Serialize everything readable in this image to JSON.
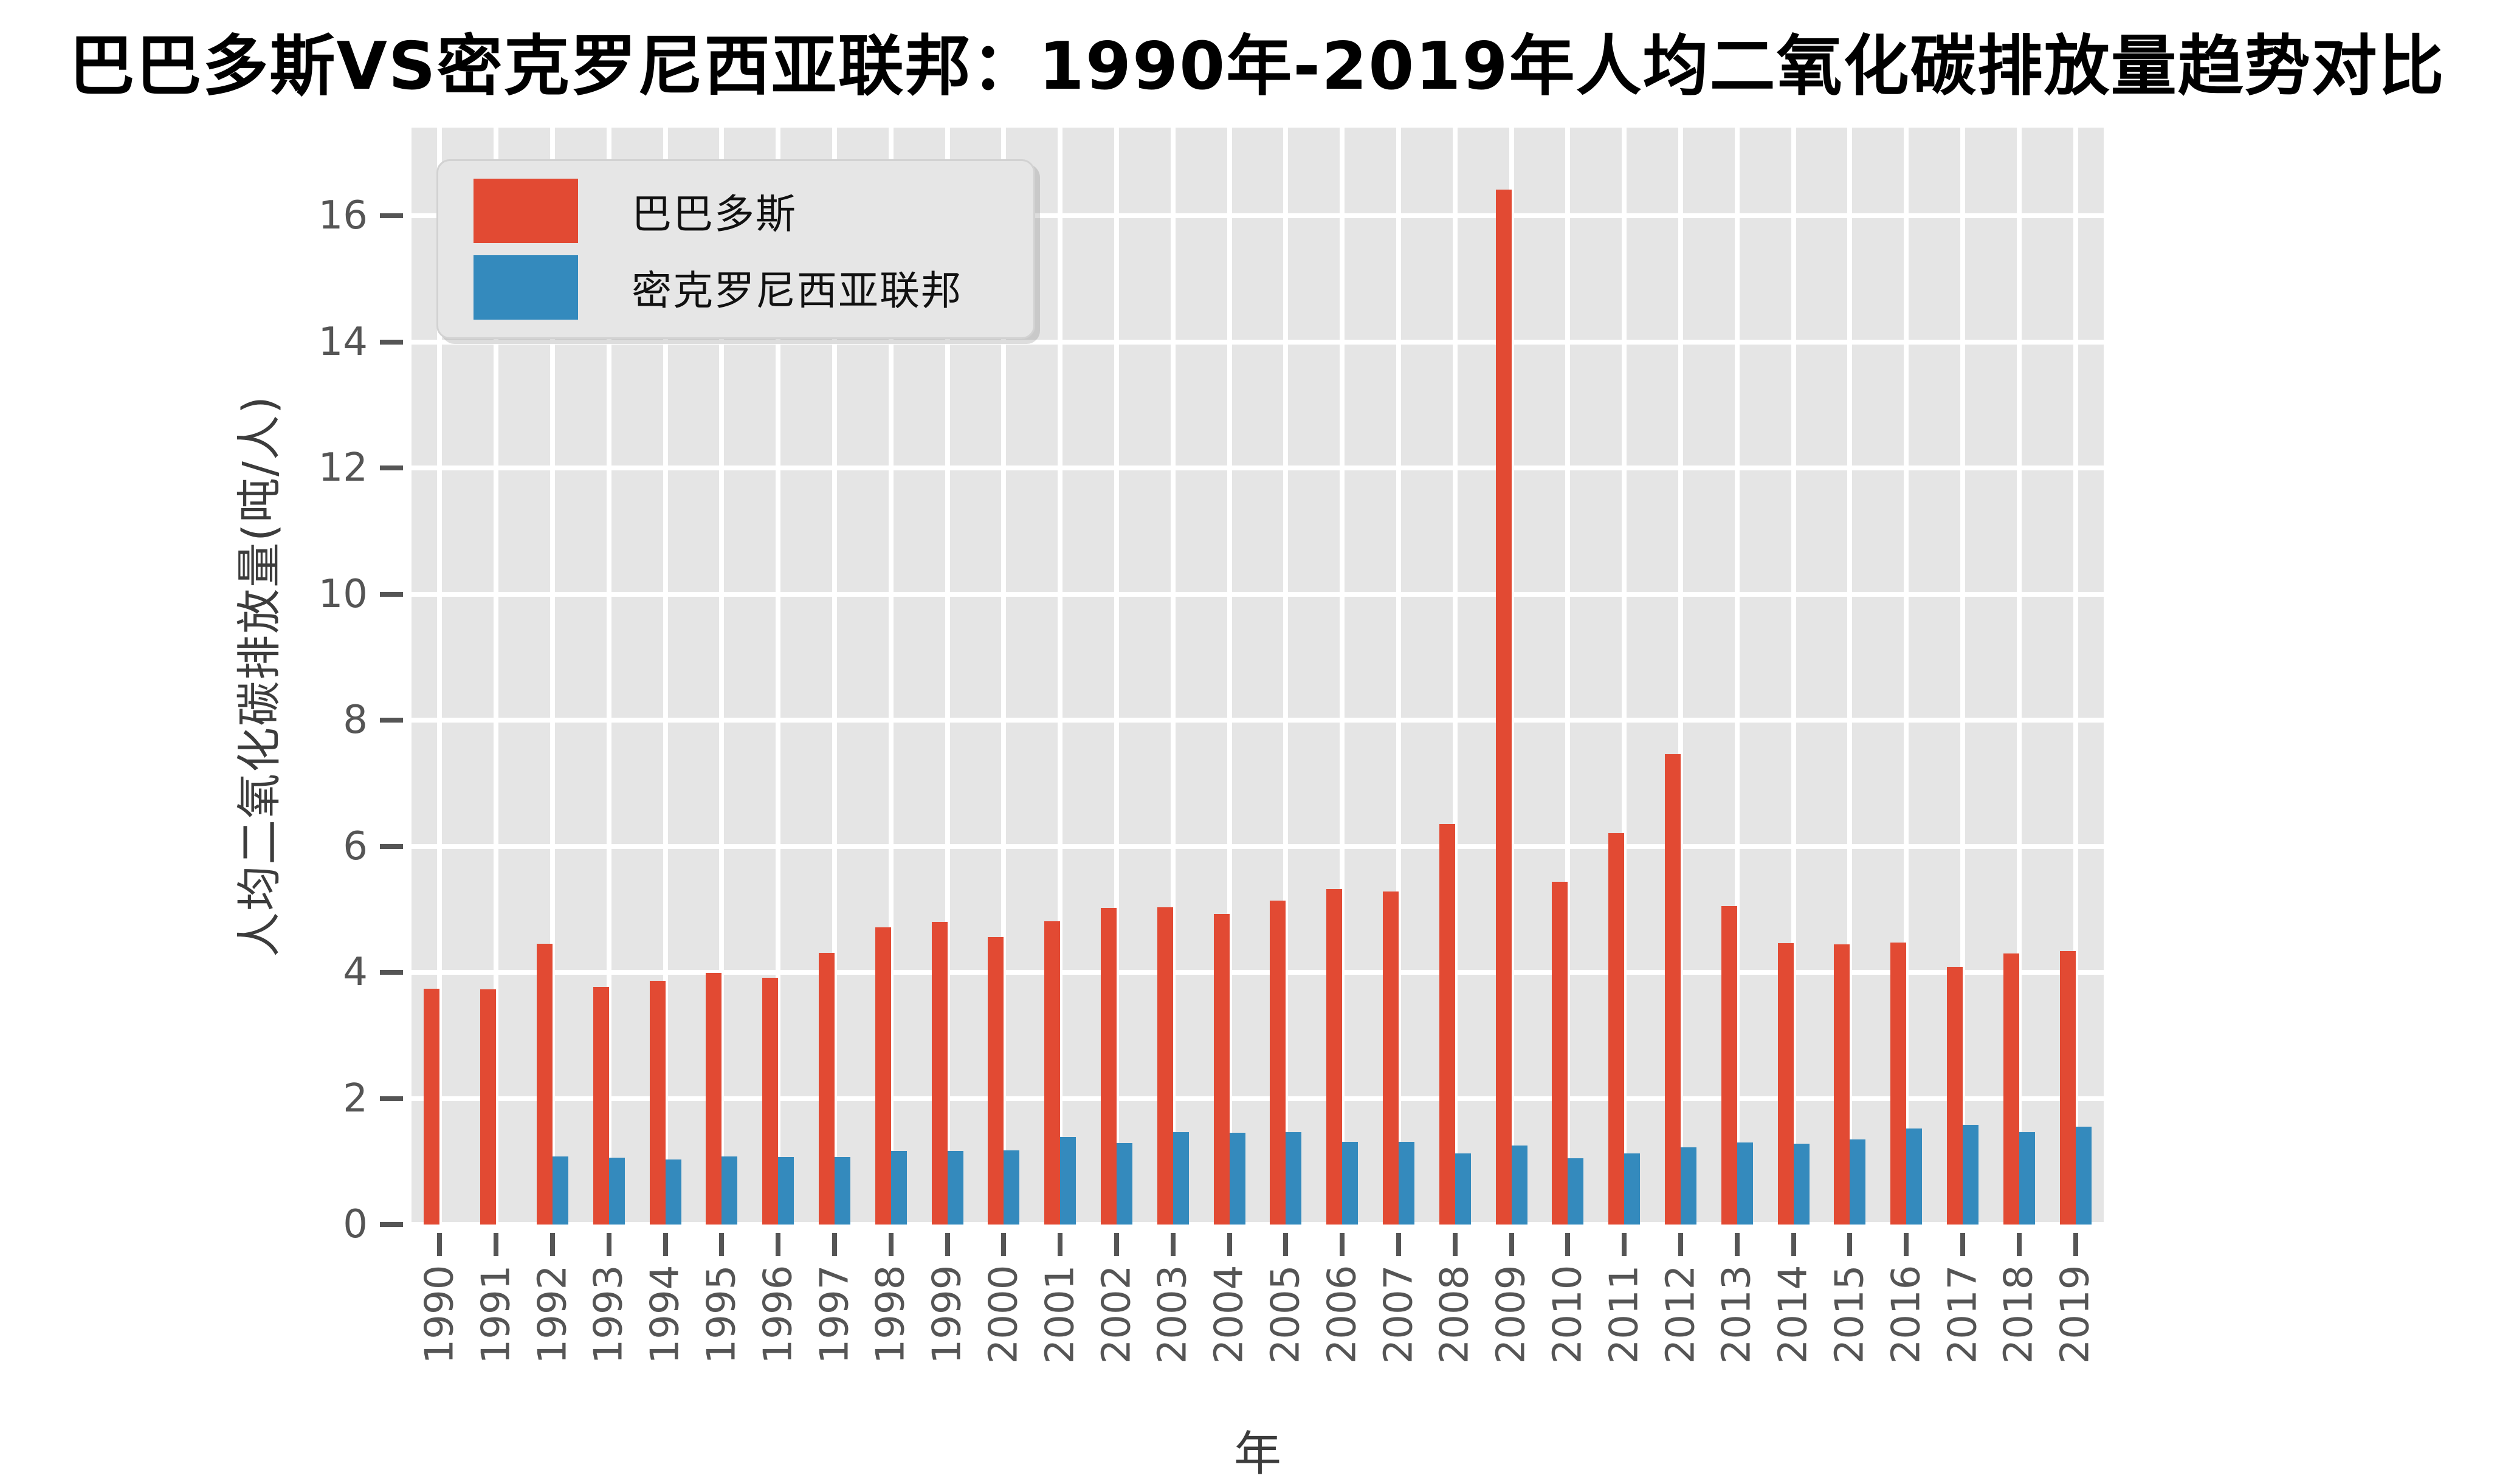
{
  "title": "巴巴多斯VS密克罗尼西亚联邦：1990年-2019年人均二氧化碳排放量趋势对比",
  "legend": {
    "items": [
      {
        "label": "巴巴多斯",
        "color": "#E24A33"
      },
      {
        "label": "密克罗尼西亚联邦",
        "color": "#348ABD"
      }
    ]
  },
  "chart_data": {
    "type": "bar",
    "title": "巴巴多斯VS密克罗尼西亚联邦：1990年-2019年人均二氧化碳排放量趋势对比",
    "xlabel": "年",
    "ylabel": "人均二氧化碳排放量(吨/人)",
    "categories": [
      "1990",
      "1991",
      "1992",
      "1993",
      "1994",
      "1995",
      "1996",
      "1997",
      "1998",
      "1999",
      "2000",
      "2001",
      "2002",
      "2003",
      "2004",
      "2005",
      "2006",
      "2007",
      "2008",
      "2009",
      "2010",
      "2011",
      "2012",
      "2013",
      "2014",
      "2015",
      "2016",
      "2017",
      "2018",
      "2019"
    ],
    "series": [
      {
        "name": "巴巴多斯",
        "color": "#E24A33",
        "values": [
          3.74,
          3.73,
          4.45,
          3.77,
          3.87,
          3.99,
          3.91,
          4.31,
          4.71,
          4.8,
          4.56,
          4.81,
          5.02,
          5.03,
          4.93,
          5.14,
          5.32,
          5.28,
          6.35,
          16.42,
          5.44,
          6.21,
          7.46,
          5.05,
          4.46,
          4.44,
          4.47,
          4.09,
          4.3,
          4.34
        ]
      },
      {
        "name": "密克罗尼西亚联邦",
        "color": "#348ABD",
        "values": [
          0,
          0,
          1.08,
          1.06,
          1.03,
          1.08,
          1.07,
          1.07,
          1.17,
          1.17,
          1.18,
          1.39,
          1.29,
          1.47,
          1.46,
          1.47,
          1.31,
          1.31,
          1.13,
          1.25,
          1.05,
          1.13,
          1.22,
          1.3,
          1.28,
          1.35,
          1.52,
          1.58,
          1.47,
          1.55
        ]
      }
    ],
    "ylim": [
      0,
      17.4
    ],
    "yticks": [
      0,
      2,
      4,
      6,
      8,
      10,
      12,
      14,
      16
    ],
    "grid": true,
    "grid_color": "#ffffff",
    "plot_background": "#E5E5E5",
    "tick_color": "#555555",
    "legend_position": "upper left"
  }
}
